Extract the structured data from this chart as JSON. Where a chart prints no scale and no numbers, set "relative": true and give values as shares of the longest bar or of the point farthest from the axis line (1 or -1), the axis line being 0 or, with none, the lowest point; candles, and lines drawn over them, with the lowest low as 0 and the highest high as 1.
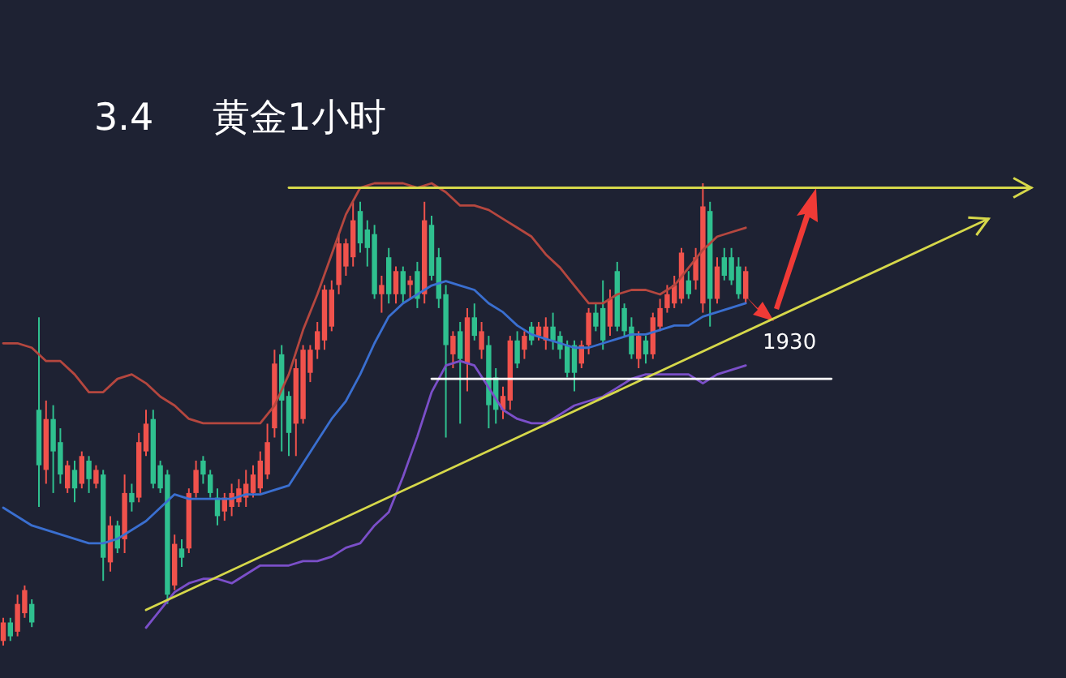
{
  "chart_data": [
    {
      "type": "candlestick",
      "title": "3.4     黄金1小时",
      "relative": true,
      "categories": [
        null,
        null,
        null,
        null,
        null,
        null,
        null,
        null,
        null,
        null,
        null,
        null,
        null,
        null,
        null,
        null,
        null,
        null,
        null,
        null,
        null,
        null,
        null,
        null,
        null,
        null,
        null,
        null,
        null,
        null,
        null,
        null,
        null,
        null,
        null,
        null,
        null,
        null,
        null,
        null,
        null,
        null,
        null,
        null,
        null,
        null,
        null,
        null,
        null,
        null,
        null,
        null,
        null,
        null,
        null,
        null,
        null,
        null,
        null,
        null,
        null,
        null,
        null,
        null,
        null,
        null,
        null,
        null,
        null,
        null,
        null,
        null,
        null,
        null,
        null,
        null,
        null,
        null,
        null,
        null,
        null,
        null,
        null,
        null,
        null,
        null,
        null,
        null,
        null,
        null,
        null,
        null,
        null,
        null,
        null,
        null,
        null,
        null,
        null,
        null,
        null,
        null,
        null,
        null,
        null
      ],
      "ohlc": [
        [
          0.01,
          0.06,
          0,
          0.05
        ],
        [
          0.05,
          0.06,
          0.01,
          0.02
        ],
        [
          0.03,
          0.11,
          0.02,
          0.09
        ],
        [
          0.07,
          0.13,
          0.06,
          0.12
        ],
        [
          0.09,
          0.1,
          0.04,
          0.05
        ],
        [
          0.51,
          0.71,
          0.3,
          0.39
        ],
        [
          0.38,
          0.53,
          0.35,
          0.49
        ],
        [
          0.49,
          0.52,
          0.33,
          0.42
        ],
        [
          0.44,
          0.47,
          0.35,
          0.37
        ],
        [
          0.34,
          0.4,
          0.33,
          0.39
        ],
        [
          0.38,
          0.4,
          0.31,
          0.34
        ],
        [
          0.35,
          0.42,
          0.34,
          0.41
        ],
        [
          0.4,
          0.41,
          0.33,
          0.36
        ],
        [
          0.35,
          0.39,
          0.34,
          0.38
        ],
        [
          0.37,
          0.38,
          0.14,
          0.19
        ],
        [
          0.18,
          0.28,
          0.16,
          0.26
        ],
        [
          0.26,
          0.27,
          0.2,
          0.21
        ],
        [
          0.23,
          0.37,
          0.2,
          0.33
        ],
        [
          0.33,
          0.35,
          0.29,
          0.31
        ],
        [
          0.32,
          0.46,
          0.31,
          0.44
        ],
        [
          0.42,
          0.51,
          0.41,
          0.48
        ],
        [
          0.49,
          0.51,
          0.34,
          0.35
        ],
        [
          0.39,
          0.4,
          0.33,
          0.34
        ],
        [
          0.37,
          0.38,
          0.09,
          0.11
        ],
        [
          0.13,
          0.24,
          0.12,
          0.22
        ],
        [
          0.21,
          0.23,
          0.17,
          0.19
        ],
        [
          0.21,
          0.34,
          0.2,
          0.33
        ],
        [
          0.33,
          0.4,
          0.32,
          0.38
        ],
        [
          0.4,
          0.41,
          0.35,
          0.37
        ],
        [
          0.37,
          0.38,
          0.32,
          0.33
        ],
        [
          0.32,
          0.34,
          0.26,
          0.28
        ],
        [
          0.29,
          0.33,
          0.27,
          0.32
        ],
        [
          0.3,
          0.35,
          0.28,
          0.33
        ],
        [
          0.31,
          0.36,
          0.3,
          0.34
        ],
        [
          0.32,
          0.38,
          0.3,
          0.35
        ],
        [
          0.33,
          0.39,
          0.32,
          0.37
        ],
        [
          0.34,
          0.42,
          0.33,
          0.4
        ],
        [
          0.37,
          0.48,
          0.36,
          0.44
        ],
        [
          0.47,
          0.64,
          0.45,
          0.61
        ],
        [
          0.63,
          0.65,
          0.42,
          0.53
        ],
        [
          0.54,
          0.55,
          0.41,
          0.46
        ],
        [
          0.48,
          0.62,
          0.41,
          0.6
        ],
        [
          0.49,
          0.65,
          0.48,
          0.64
        ],
        [
          0.59,
          0.65,
          0.57,
          0.64
        ],
        [
          0.64,
          0.7,
          0.62,
          0.68
        ],
        [
          0.66,
          0.78,
          0.64,
          0.77
        ],
        [
          0.69,
          0.79,
          0.68,
          0.77
        ],
        [
          0.78,
          0.89,
          0.76,
          0.87
        ],
        [
          0.82,
          0.88,
          0.8,
          0.87
        ],
        [
          0.84,
          0.96,
          0.82,
          0.92
        ],
        [
          0.94,
          0.96,
          0.85,
          0.87
        ],
        [
          0.9,
          0.92,
          0.82,
          0.86
        ],
        [
          0.89,
          0.91,
          0.75,
          0.76
        ],
        [
          0.76,
          0.8,
          0.72,
          0.78
        ],
        [
          0.84,
          0.86,
          0.74,
          0.76
        ],
        [
          0.76,
          0.82,
          0.74,
          0.81
        ],
        [
          0.81,
          0.82,
          0.74,
          0.76
        ],
        [
          0.78,
          0.8,
          0.75,
          0.79
        ],
        [
          0.81,
          0.83,
          0.73,
          0.75
        ],
        [
          0.76,
          0.96,
          0.74,
          0.92
        ],
        [
          0.91,
          0.93,
          0.79,
          0.8
        ],
        [
          0.84,
          0.86,
          0.73,
          0.75
        ],
        [
          0.76,
          0.78,
          0.45,
          0.65
        ],
        [
          0.63,
          0.68,
          0.6,
          0.67
        ],
        [
          0.68,
          0.7,
          0.48,
          0.62
        ],
        [
          0.61,
          0.73,
          0.55,
          0.71
        ],
        [
          0.71,
          0.74,
          0.66,
          0.67
        ],
        [
          0.64,
          0.7,
          0.62,
          0.68
        ],
        [
          0.65,
          0.67,
          0.47,
          0.52
        ],
        [
          0.58,
          0.6,
          0.48,
          0.51
        ],
        [
          0.51,
          0.56,
          0.49,
          0.54
        ],
        [
          0.53,
          0.67,
          0.51,
          0.66
        ],
        [
          0.66,
          0.68,
          0.6,
          0.61
        ],
        [
          0.64,
          0.68,
          0.62,
          0.67
        ],
        [
          0.69,
          0.7,
          0.65,
          0.66
        ],
        [
          0.67,
          0.7,
          0.66,
          0.69
        ],
        [
          0.66,
          0.71,
          0.64,
          0.69
        ],
        [
          0.69,
          0.72,
          0.64,
          0.66
        ],
        [
          0.67,
          0.68,
          0.62,
          0.64
        ],
        [
          0.65,
          0.66,
          0.58,
          0.59
        ],
        [
          0.65,
          0.66,
          0.55,
          0.59
        ],
        [
          0.61,
          0.66,
          0.6,
          0.65
        ],
        [
          0.65,
          0.73,
          0.63,
          0.72
        ],
        [
          0.72,
          0.74,
          0.68,
          0.69
        ],
        [
          0.73,
          0.79,
          0.64,
          0.66
        ],
        [
          0.69,
          0.77,
          0.67,
          0.75
        ],
        [
          0.81,
          0.83,
          0.68,
          0.69
        ],
        [
          0.73,
          0.74,
          0.67,
          0.68
        ],
        [
          0.69,
          0.71,
          0.62,
          0.63
        ],
        [
          0.62,
          0.68,
          0.6,
          0.67
        ],
        [
          0.66,
          0.67,
          0.61,
          0.63
        ],
        [
          0.63,
          0.72,
          0.62,
          0.71
        ],
        [
          0.69,
          0.75,
          0.68,
          0.73
        ],
        [
          0.73,
          0.78,
          0.72,
          0.76
        ],
        [
          0.74,
          0.8,
          0.73,
          0.78
        ],
        [
          0.75,
          0.86,
          0.74,
          0.85
        ],
        [
          0.79,
          0.81,
          0.75,
          0.76
        ],
        [
          0.79,
          0.86,
          0.77,
          0.84
        ],
        [
          0.74,
          1.0,
          0.72,
          0.95
        ],
        [
          0.94,
          0.96,
          0.69,
          0.75
        ],
        [
          0.75,
          0.84,
          0.74,
          0.82
        ],
        [
          0.84,
          0.86,
          0.79,
          0.8
        ],
        [
          0.84,
          0.86,
          0.78,
          0.79
        ],
        [
          0.82,
          0.84,
          0.75,
          0.76
        ],
        [
          0.75,
          0.82,
          0.74,
          0.81
        ]
      ],
      "colors": [
        "#f0524c",
        "#2fc08f",
        "#f0524c",
        "#f0524c",
        "#2fc08f",
        "#2fc08f",
        "#f0524c",
        "#2fc08f",
        "#2fc08f",
        "#f0524c",
        "#2fc08f",
        "#f0524c",
        "#2fc08f",
        "#f0524c",
        "#2fc08f",
        "#f0524c",
        "#2fc08f",
        "#f0524c",
        "#2fc08f",
        "#f0524c",
        "#f0524c",
        "#2fc08f",
        "#2fc08f",
        "#2fc08f",
        "#f0524c",
        "#2fc08f",
        "#f0524c",
        "#f0524c",
        "#2fc08f",
        "#2fc08f",
        "#2fc08f",
        "#f0524c",
        "#f0524c",
        "#f0524c",
        "#f0524c",
        "#f0524c",
        "#f0524c",
        "#f0524c",
        "#f0524c",
        "#2fc08f",
        "#2fc08f",
        "#f0524c",
        "#f0524c",
        "#f0524c",
        "#f0524c",
        "#f0524c",
        "#f0524c",
        "#f0524c",
        "#f0524c",
        "#f0524c",
        "#2fc08f",
        "#2fc08f",
        "#2fc08f",
        "#f0524c",
        "#2fc08f",
        "#f0524c",
        "#2fc08f",
        "#f0524c",
        "#2fc08f",
        "#f0524c",
        "#2fc08f",
        "#2fc08f",
        "#2fc08f",
        "#f0524c",
        "#2fc08f",
        "#f0524c",
        "#2fc08f",
        "#f0524c",
        "#2fc08f",
        "#2fc08f",
        "#f0524c",
        "#f0524c",
        "#2fc08f",
        "#f0524c",
        "#2fc08f",
        "#f0524c",
        "#f0524c",
        "#2fc08f",
        "#2fc08f",
        "#2fc08f",
        "#2fc08f",
        "#f0524c",
        "#f0524c",
        "#2fc08f",
        "#2fc08f",
        "#f0524c",
        "#2fc08f",
        "#2fc08f",
        "#2fc08f",
        "#f0524c",
        "#2fc08f",
        "#f0524c",
        "#f0524c",
        "#f0524c",
        "#f0524c",
        "#f0524c",
        "#2fc08f",
        "#f0524c",
        "#f0524c",
        "#2fc08f",
        "#f0524c",
        "#2fc08f",
        "#2fc08f",
        "#2fc08f",
        "#f0524c"
      ]
    },
    {
      "type": "line",
      "relative": true,
      "annotations": [
        "1930"
      ],
      "categories": [
        null,
        null,
        null,
        null,
        null,
        null,
        null,
        null,
        null,
        null,
        null,
        null,
        null,
        null,
        null,
        null,
        null,
        null,
        null,
        null,
        null,
        null,
        null,
        null,
        null,
        null,
        null,
        null,
        null,
        null,
        null,
        null,
        null,
        null,
        null,
        null,
        null,
        null,
        null,
        null,
        null,
        null,
        null,
        null,
        null,
        null,
        null,
        null,
        null,
        null,
        null,
        null,
        null,
        null,
        null,
        null,
        null,
        null,
        null,
        null,
        null,
        null,
        null,
        null,
        null,
        null,
        null,
        null,
        null,
        null,
        null,
        null,
        null
      ],
      "series": [
        {
          "color": "#b5473f",
          "values": [
            0.64,
            0.64,
            0.63,
            0.6,
            0.6,
            0.57,
            0.53,
            0.53,
            0.56,
            0.57,
            0.55,
            0.52,
            0.5,
            0.47,
            0.46,
            0.46,
            0.46,
            0.46,
            0.46,
            0.5,
            0.57,
            0.67,
            0.75,
            0.84,
            0.93,
            0.99,
            1.0,
            1.0,
            1.0,
            0.99,
            1.0,
            0.98,
            0.95,
            0.95,
            0.94,
            0.92,
            0.9,
            0.88,
            0.84,
            0.81,
            0.77,
            0.73,
            0.73,
            0.75,
            0.76,
            0.76,
            0.75,
            0.77,
            0.81,
            0.85,
            0.88,
            0.89,
            0.9,
            null,
            null,
            null,
            null,
            null,
            null,
            null,
            null,
            null,
            null,
            null,
            null,
            null,
            null,
            null,
            null,
            null,
            null,
            null,
            null
          ]
        },
        {
          "color": "#3a6fd0",
          "values": [
            0.27,
            0.25,
            0.23,
            0.22,
            0.21,
            0.2,
            0.19,
            0.19,
            0.2,
            0.22,
            0.24,
            0.27,
            0.3,
            0.29,
            0.29,
            0.29,
            0.29,
            0.3,
            0.3,
            0.31,
            0.32,
            0.37,
            0.42,
            0.47,
            0.51,
            0.57,
            0.64,
            0.7,
            0.73,
            0.75,
            0.77,
            0.78,
            0.77,
            0.76,
            0.73,
            0.71,
            0.68,
            0.66,
            0.65,
            0.64,
            0.63,
            0.63,
            0.64,
            0.65,
            0.66,
            0.66,
            0.67,
            0.68,
            0.68,
            0.7,
            0.71,
            0.72,
            0.73,
            null,
            null,
            null,
            null,
            null,
            null,
            null,
            null,
            null,
            null,
            null,
            null,
            null,
            null,
            null,
            null,
            null,
            null,
            null,
            null
          ]
        },
        {
          "color": "#7b4fc9",
          "values": [
            null,
            null,
            null,
            null,
            null,
            null,
            null,
            null,
            null,
            null,
            0,
            0.04,
            0.08,
            0.1,
            0.11,
            0.11,
            0.1,
            0.12,
            0.14,
            0.14,
            0.14,
            0.15,
            0.15,
            0.16,
            0.18,
            0.19,
            0.23,
            0.26,
            0.34,
            0.43,
            0.53,
            0.59,
            0.6,
            0.59,
            0.54,
            0.49,
            0.47,
            0.46,
            0.46,
            0.48,
            0.5,
            0.51,
            0.52,
            0.54,
            0.56,
            0.57,
            0.57,
            0.57,
            0.57,
            0.55,
            0.57,
            0.58,
            0.59,
            null,
            null,
            null,
            null,
            null,
            null,
            null,
            null,
            null,
            null,
            null,
            null,
            null,
            null,
            null,
            null,
            null,
            null,
            null,
            null
          ]
        },
        {
          "color": "#d6d84a",
          "values": [
            null,
            null,
            null,
            null,
            null,
            null,
            null,
            null,
            null,
            null,
            null,
            null,
            null,
            null,
            null,
            null,
            null,
            null,
            null,
            null,
            0.99,
            0.99,
            0.99,
            0.99,
            0.99,
            0.99,
            0.99,
            0.99,
            0.99,
            0.99,
            0.99,
            0.99,
            0.99,
            0.99,
            0.99,
            0.99,
            0.99,
            0.99,
            0.99,
            0.99,
            0.99,
            0.99,
            0.99,
            0.99,
            0.99,
            0.99,
            0.99,
            0.99,
            0.99,
            0.99,
            0.99,
            0.99,
            0.99,
            0.99,
            0.99,
            0.99,
            0.99,
            0.99,
            0.99,
            0.99,
            0.99,
            0.99,
            0.99,
            0.99,
            0.99,
            0.99,
            0.99,
            0.99,
            0.99,
            0.99,
            0.99,
            0.99,
            0.99
          ]
        },
        {
          "color": "#d6d84a",
          "values": [
            null,
            null,
            null,
            null,
            null,
            null,
            null,
            null,
            null,
            null,
            0.04,
            0.06,
            0.07,
            0.09,
            0.1,
            0.12,
            0.13,
            0.15,
            0.16,
            0.18,
            0.19,
            0.21,
            0.22,
            0.23,
            0.25,
            0.26,
            0.28,
            0.29,
            0.31,
            0.32,
            0.34,
            0.35,
            0.37,
            0.38,
            0.4,
            0.41,
            0.43,
            0.44,
            0.46,
            0.47,
            0.49,
            0.5,
            0.52,
            0.53,
            0.55,
            0.56,
            0.58,
            0.59,
            0.61,
            0.62,
            0.64,
            0.65,
            0.67,
            0.68,
            0.7,
            0.71,
            0.73,
            0.74,
            0.76,
            0.77,
            0.79,
            0.8,
            0.81,
            0.83,
            0.84,
            0.86,
            0.87,
            0.89,
            0.9,
            0.92,
            null,
            null,
            null
          ]
        },
        {
          "color": "#ffffff",
          "values": [
            null,
            null,
            null,
            null,
            null,
            null,
            null,
            null,
            null,
            null,
            null,
            null,
            null,
            null,
            null,
            null,
            null,
            null,
            null,
            null,
            null,
            null,
            null,
            null,
            null,
            null,
            null,
            null,
            null,
            null,
            0.56,
            0.56,
            0.56,
            0.56,
            0.56,
            0.56,
            0.56,
            0.56,
            0.56,
            0.56,
            0.56,
            0.56,
            0.56,
            0.56,
            0.56,
            0.56,
            0.56,
            0.56,
            0.56,
            0.56,
            0.56,
            0.56,
            0.56,
            0.56,
            0.56,
            0.56,
            0.56,
            0.56,
            0.56,
            null,
            null,
            null,
            null,
            null,
            null,
            null,
            null,
            null,
            null,
            null,
            null,
            null,
            null
          ]
        }
      ]
    }
  ]
}
